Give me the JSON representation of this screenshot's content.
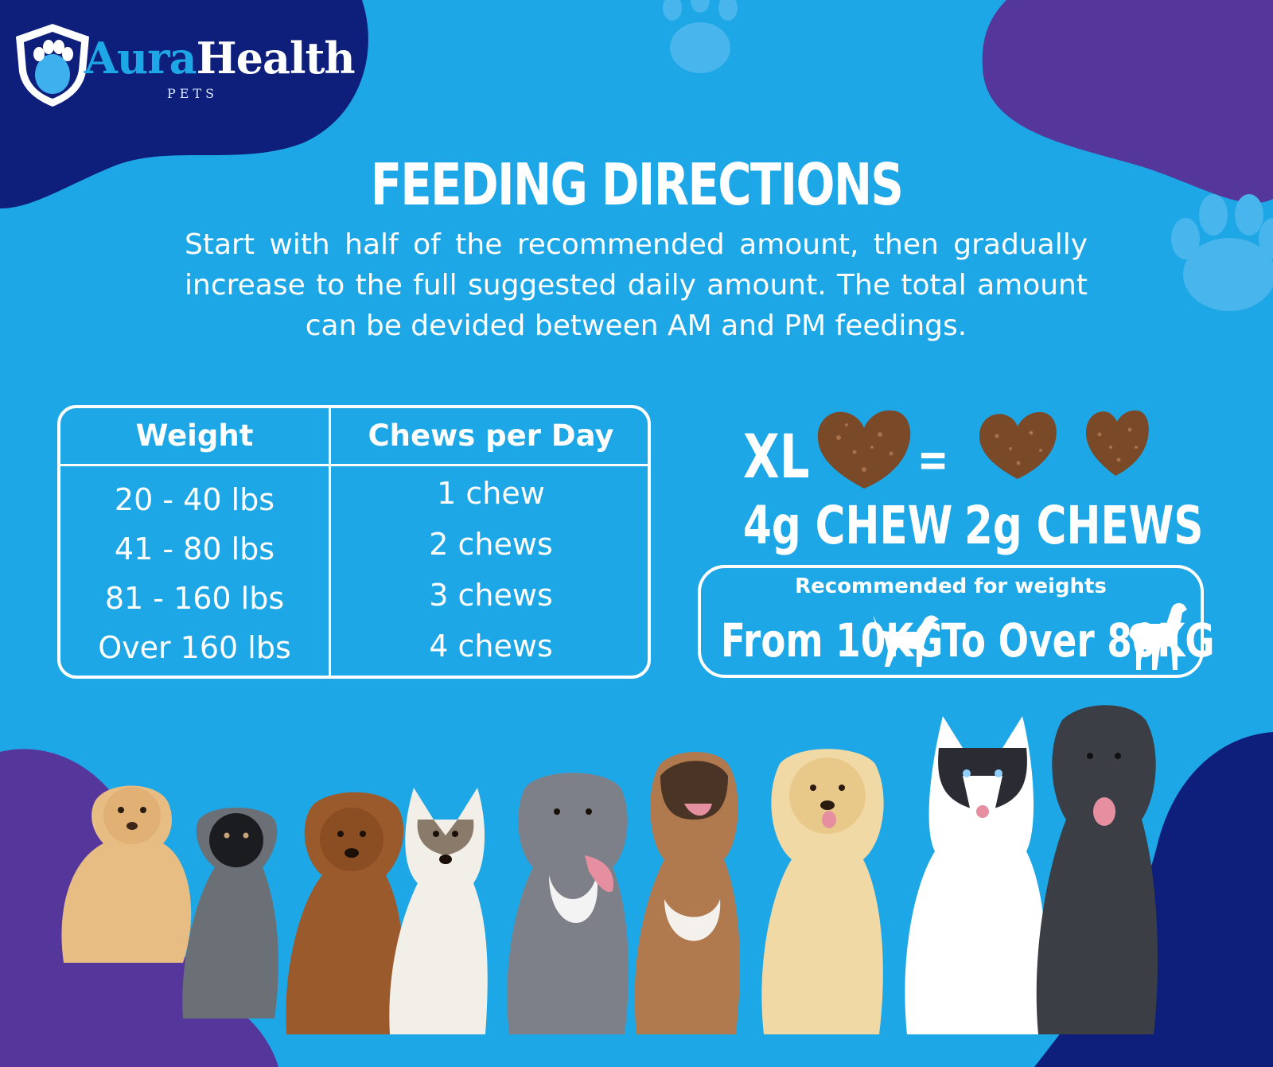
{
  "brand": {
    "name_part1": "Aura",
    "name_part2": "Health",
    "sub": "PETS"
  },
  "heading": {
    "title": "FEEDING DIRECTIONS",
    "intro": "Start with half of the recommended amount, then gradually increase to the full suggested daily amount. The total amount can be devided between AM and PM feedings."
  },
  "table": {
    "headers": [
      "Weight",
      "Chews per Day"
    ],
    "rows": [
      [
        "20 - 40 lbs",
        "1 chew"
      ],
      [
        "41 - 80 lbs",
        "2 chews"
      ],
      [
        "81 - 160 lbs",
        "3 chews"
      ],
      [
        "Over 160 lbs",
        "4 chews"
      ]
    ]
  },
  "chews": {
    "size_label": "XL",
    "equals": "=",
    "large_label": "4g CHEW",
    "small_label": "2g CHEWS"
  },
  "recommendation": {
    "heading": "Recommended for weights",
    "from": "From 10KG",
    "to": "To Over 80KG"
  },
  "colors": {
    "background": "#1ea7e6",
    "navy": "#0d1f7a",
    "purple": "#55369a",
    "chew": "#7a4a28",
    "white": "#ffffff"
  },
  "icons": [
    "shield-paw-logo-icon",
    "paw-print-icon",
    "chew-treat-icon",
    "small-dog-icon",
    "large-dog-icon",
    "dog-group-photo"
  ]
}
